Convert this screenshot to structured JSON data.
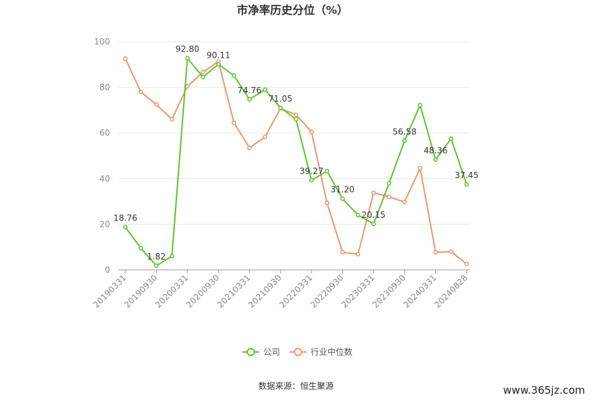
{
  "chart_data": {
    "type": "line",
    "title": "市净率历史分位（%）",
    "xlabel": "",
    "ylabel": "",
    "ylim": [
      0,
      100
    ],
    "yticks": [
      0,
      20,
      40,
      60,
      80,
      100
    ],
    "x": [
      "20190331",
      "20190630",
      "20190930",
      "20191231",
      "20200331",
      "20200630",
      "20200930",
      "20201231",
      "20210331",
      "20210630",
      "20210930",
      "20211231",
      "20220331",
      "20220630",
      "20220930",
      "20221231",
      "20230331",
      "20230630",
      "20230930",
      "20231231",
      "20240331",
      "20240630",
      "20240828"
    ],
    "x_tick_labels": [
      "20190331",
      "20190930",
      "20200331",
      "20200930",
      "20210331",
      "20210930",
      "20220331",
      "20220930",
      "20230331",
      "20230930",
      "20240331",
      "20240828"
    ],
    "series": [
      {
        "name": "公司",
        "color": "#5cc62c",
        "values": [
          18.76,
          9.5,
          1.82,
          6.0,
          92.8,
          84.5,
          90.11,
          85.2,
          74.76,
          79.0,
          71.05,
          66.0,
          39.27,
          43.3,
          31.2,
          24.0,
          20.15,
          38.0,
          56.58,
          72.2,
          48.36,
          57.6,
          37.45
        ],
        "labels": {
          "0": "18.76",
          "2": "1.82",
          "4": "92.80",
          "6": "90.11",
          "8": "74.76",
          "10": "71.05",
          "12": "39.27",
          "14": "31.20",
          "16": "20.15",
          "18": "56.58",
          "20": "48.36",
          "22": "37.45"
        }
      },
      {
        "name": "行业中位数",
        "color": "#f0956a",
        "values": [
          92.6,
          78.0,
          72.5,
          66.0,
          80.5,
          86.7,
          91.3,
          64.5,
          53.5,
          58.3,
          70.8,
          68.0,
          60.5,
          29.4,
          7.7,
          6.9,
          33.8,
          32.0,
          29.8,
          44.6,
          7.7,
          8.0,
          2.6
        ]
      }
    ],
    "legend_position": "bottom",
    "grid": true
  },
  "footer": {
    "source": "数据来源：恒生聚源",
    "watermark": "www.365jz.com"
  }
}
